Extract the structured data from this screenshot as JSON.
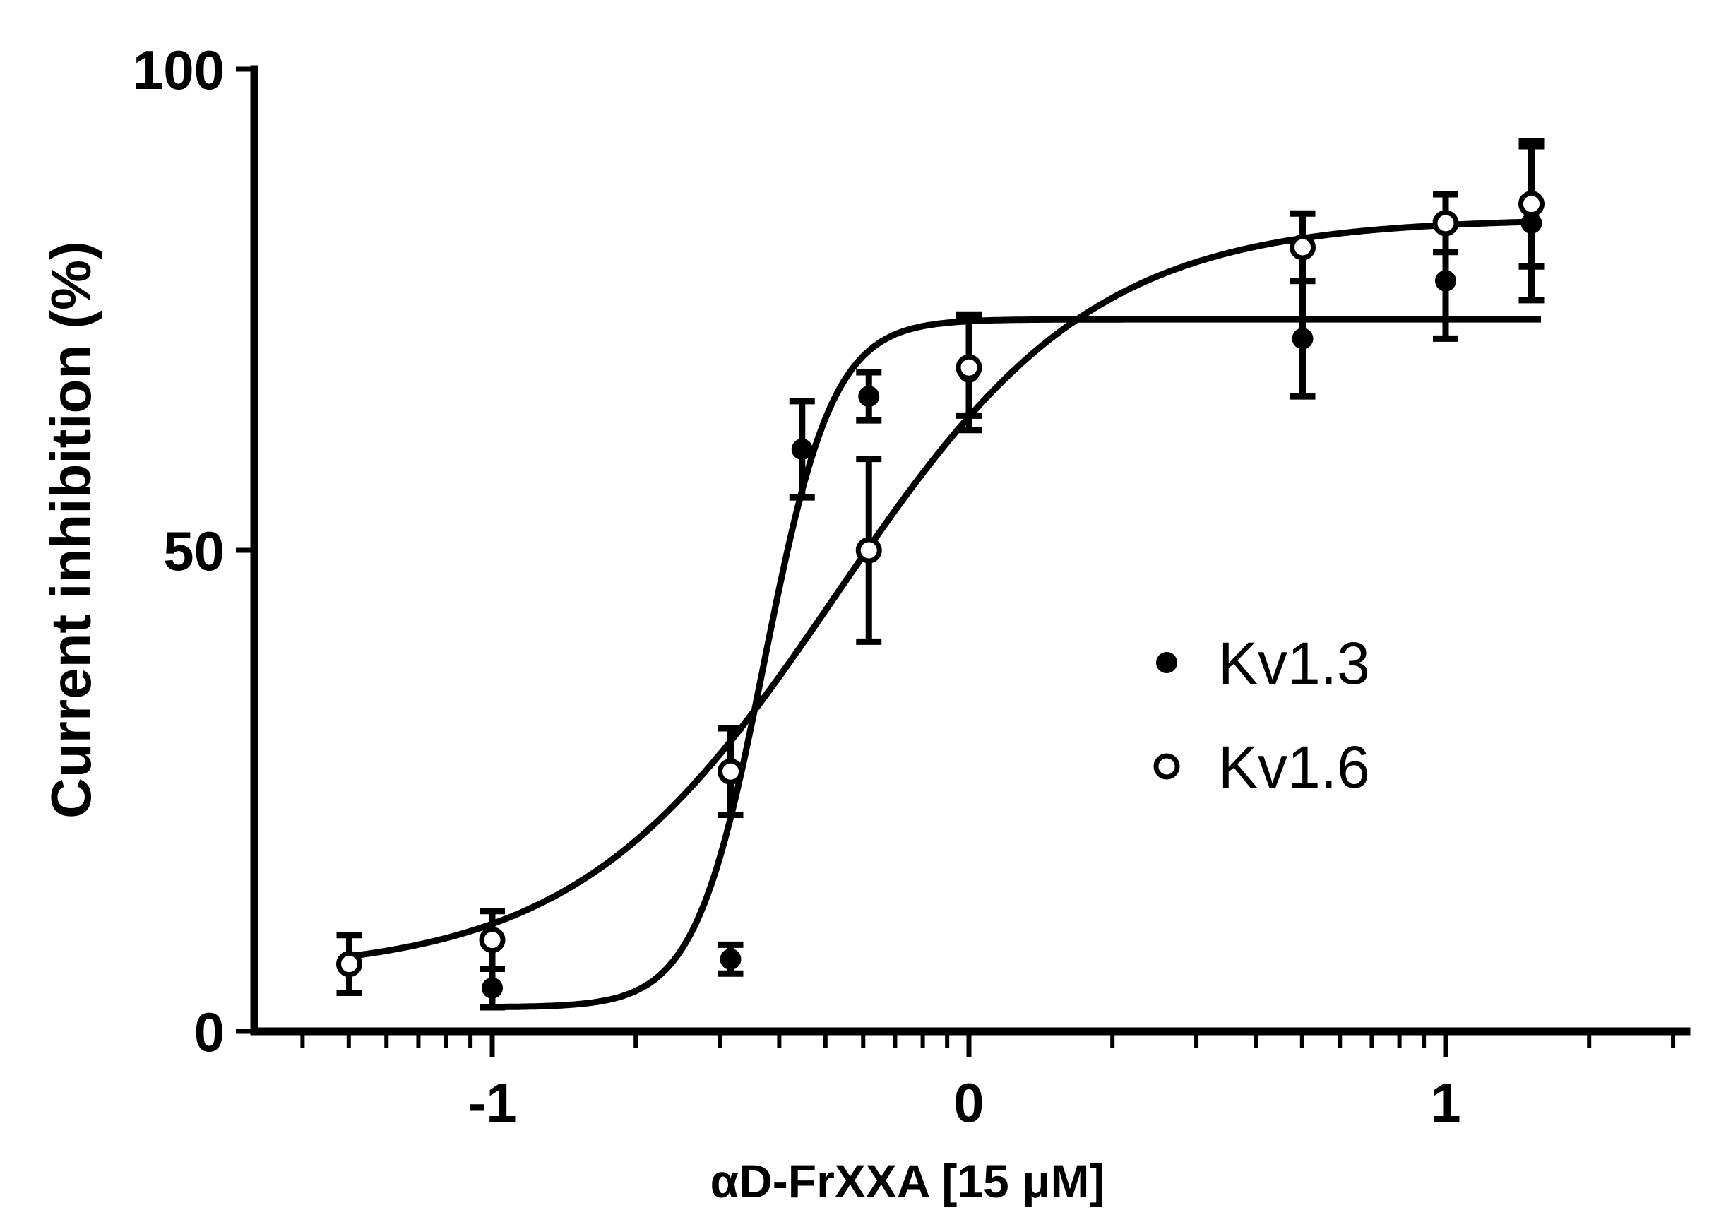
{
  "chart_data": {
    "type": "scatter",
    "title": "",
    "xlabel": "αD-FrXXA [15 μM]",
    "ylabel": "Current inhibition (%)",
    "xscale": "log10 (tick labels show exponent)",
    "xlim": [
      -1.5,
      1.5
    ],
    "ylim": [
      0,
      100
    ],
    "x_ticks": [
      -1,
      0,
      1
    ],
    "x_tick_labels": [
      "-1",
      "0",
      "1"
    ],
    "y_ticks": [
      0,
      50,
      100
    ],
    "y_tick_labels": [
      "0",
      "50",
      "100"
    ],
    "legend_position": "center-right",
    "grid": false,
    "series": [
      {
        "name": "Kv1.3",
        "marker": "filled-circle",
        "x": [
          -1.0,
          -0.5,
          -0.35,
          -0.21,
          0.0,
          0.7,
          1.0,
          1.18
        ],
        "y": [
          4.5,
          7.5,
          60.5,
          66.0,
          68.5,
          72.0,
          78.0,
          84.0
        ],
        "err": [
          2.0,
          1.5,
          5.0,
          2.5,
          6.0,
          6.0,
          6.0,
          8.0
        ],
        "fit": {
          "bottom": 2.5,
          "top": 74.0,
          "logEC50": -0.43,
          "hill": 6.0
        }
      },
      {
        "name": "Kv1.6",
        "marker": "open-circle",
        "x": [
          -1.3,
          -1.0,
          -0.5,
          -0.21,
          0.0,
          0.7,
          1.0,
          1.18
        ],
        "y": [
          7.0,
          9.5,
          27.0,
          50.0,
          69.0,
          81.5,
          84.0,
          86.0
        ],
        "err": [
          3.0,
          3.0,
          4.5,
          9.5,
          5.0,
          3.5,
          3.0,
          6.5
        ],
        "fit": {
          "bottom": 6.0,
          "top": 84.5,
          "logEC50": -0.28,
          "hill": 1.6
        }
      }
    ]
  }
}
